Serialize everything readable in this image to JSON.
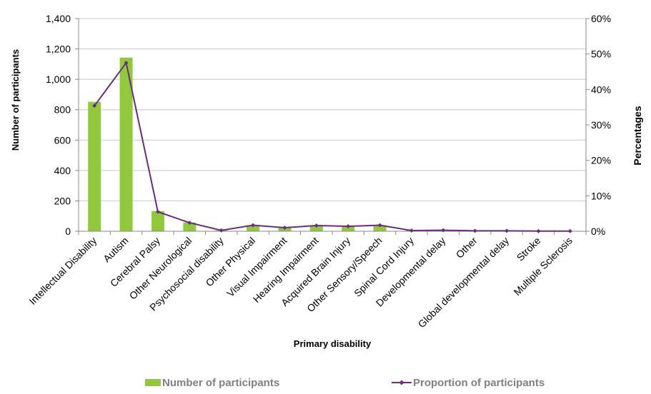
{
  "chart_data": {
    "type": "bar",
    "categories": [
      "Intellectual Disability",
      "Autism",
      "Cerebral Palsy",
      "Other Neurological",
      "Psychosocial disability",
      "Other Physical",
      "Visual Impairment",
      "Hearing Impairment",
      "Acquired Brain Injury",
      "Other Sensory/Speech",
      "Spinal Cord Injury",
      "Developmental delay",
      "Other",
      "Global developmental delay",
      "Stroke",
      "Multiple Sclerosis"
    ],
    "series": [
      {
        "name": "Number of participants",
        "type": "bar",
        "axis": "left",
        "color": "#92c83e",
        "values": [
          852,
          1143,
          133,
          58,
          6,
          40,
          24,
          38,
          34,
          40,
          5,
          7,
          3,
          3,
          1,
          1
        ]
      },
      {
        "name": "Proportion of participants",
        "type": "line",
        "axis": "right",
        "color": "#6a2c7e",
        "values": [
          35.4,
          47.5,
          5.5,
          2.4,
          0.25,
          1.7,
          1.0,
          1.6,
          1.4,
          1.7,
          0.2,
          0.3,
          0.12,
          0.12,
          0.04,
          0.04
        ]
      }
    ],
    "xlabel": "Primary disability",
    "ylabel": "Number of participants",
    "y2label": "Percentages",
    "ylim": [
      0,
      1400
    ],
    "y2lim": [
      0,
      60
    ],
    "yticks": [
      "0",
      "200",
      "400",
      "600",
      "800",
      "1,000",
      "1,200",
      "1,400"
    ],
    "y2ticks": [
      "0%",
      "10%",
      "20%",
      "30%",
      "40%",
      "50%",
      "60%"
    ],
    "grid": true,
    "legend_position": "bottom"
  }
}
